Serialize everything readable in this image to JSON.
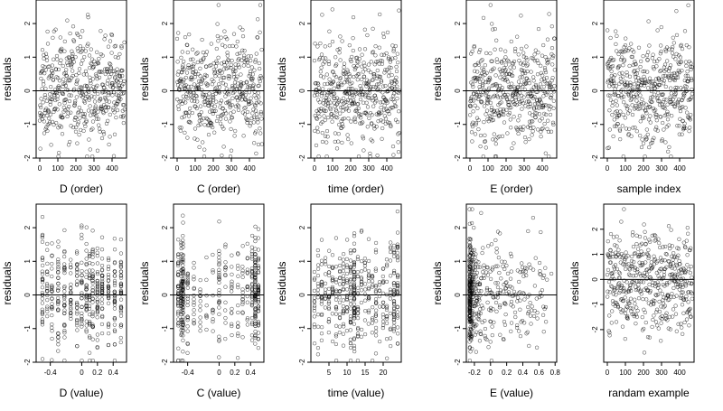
{
  "colors": {
    "point": "#000000",
    "background": "#ffffff"
  },
  "chart_data": [
    {
      "type": "scatter",
      "xlabel": "D (order)",
      "ylabel": "residuals",
      "xlim": [
        -20,
        480
      ],
      "ylim": [
        -2,
        2.7
      ],
      "xticks": [
        0,
        100,
        200,
        300,
        400
      ],
      "yticks": [
        -2,
        -1,
        0,
        1,
        2
      ],
      "reference_line": 0,
      "series": [
        {
          "generator": "index",
          "n": 470,
          "seed": 11
        }
      ]
    },
    {
      "type": "scatter",
      "xlabel": "C (order)",
      "ylabel": "residuals",
      "xlim": [
        -20,
        480
      ],
      "ylim": [
        -2,
        2.7
      ],
      "xticks": [
        0,
        100,
        200,
        300,
        400
      ],
      "yticks": [
        -2,
        -1,
        0,
        1,
        2
      ],
      "reference_line": 0,
      "series": [
        {
          "generator": "index",
          "n": 470,
          "seed": 23
        }
      ]
    },
    {
      "type": "scatter",
      "xlabel": "time (order)",
      "ylabel": "residuals",
      "xlim": [
        -20,
        480
      ],
      "ylim": [
        -2,
        2.7
      ],
      "xticks": [
        0,
        100,
        200,
        300,
        400
      ],
      "yticks": [
        -2,
        -1,
        0,
        1,
        2
      ],
      "reference_line": 0,
      "series": [
        {
          "generator": "index",
          "n": 470,
          "seed": 37
        }
      ]
    },
    {
      "type": "scatter",
      "xlabel": "E (order)",
      "ylabel": "residuals",
      "xlim": [
        -20,
        480
      ],
      "ylim": [
        -2,
        2.7
      ],
      "xticks": [
        0,
        100,
        200,
        300,
        400
      ],
      "yticks": [
        -2,
        -1,
        0,
        1,
        2
      ],
      "reference_line": 0,
      "series": [
        {
          "generator": "index",
          "n": 470,
          "seed": 41
        }
      ]
    },
    {
      "type": "scatter",
      "xlabel": "sample index",
      "ylabel": "residuals",
      "xlim": [
        -20,
        480
      ],
      "ylim": [
        -2,
        2.7
      ],
      "xticks": [
        0,
        100,
        200,
        300,
        400
      ],
      "yticks": [
        -2,
        -1,
        0,
        1,
        2
      ],
      "reference_line": 0,
      "series": [
        {
          "generator": "index",
          "n": 470,
          "seed": 53
        }
      ]
    },
    {
      "type": "scatter",
      "xlabel": "D (value)",
      "ylabel": "residuals",
      "xlim": [
        -0.58,
        0.57
      ],
      "ylim": [
        -2,
        2.7
      ],
      "xticks": [
        -0.4,
        0.0,
        0.2,
        0.4
      ],
      "yticks": [
        -2,
        -1,
        0,
        1,
        2
      ],
      "reference_line": 0,
      "series": [
        {
          "generator": "discrete",
          "n": 470,
          "seed": 61,
          "levels": [
            -0.5,
            -0.44,
            -0.38,
            -0.3,
            -0.22,
            -0.14,
            -0.06,
            0.0,
            0.06,
            0.1,
            0.14,
            0.2,
            0.26,
            0.34,
            0.42,
            0.5
          ]
        }
      ]
    },
    {
      "type": "scatter",
      "xlabel": "C (value)",
      "ylabel": "residuals",
      "xlim": [
        -0.58,
        0.57
      ],
      "ylim": [
        -2,
        2.7
      ],
      "xticks": [
        -0.4,
        0.0,
        0.2,
        0.4
      ],
      "yticks": [
        -2,
        -1,
        0,
        1,
        2
      ],
      "reference_line": 0,
      "series": [
        {
          "generator": "discrete",
          "n": 470,
          "seed": 73,
          "levels": [
            -0.52,
            -0.48,
            -0.46,
            -0.4,
            -0.32,
            -0.24,
            -0.16,
            -0.08,
            0.0,
            0.08,
            0.16,
            0.24,
            0.3,
            0.36,
            0.42,
            0.46,
            0.5
          ],
          "weights": [
            4,
            3,
            5,
            2,
            1,
            1,
            1,
            1,
            2,
            1,
            1,
            1,
            1,
            1,
            2,
            5,
            4
          ]
        }
      ]
    },
    {
      "type": "scatter",
      "xlabel": "time (value)",
      "ylabel": "residuals",
      "xlim": [
        0,
        25
      ],
      "ylim": [
        -2,
        2.7
      ],
      "xticks": [
        5,
        10,
        15,
        20
      ],
      "yticks": [
        -2,
        -1,
        0,
        1,
        2
      ],
      "reference_line": 0,
      "series": [
        {
          "generator": "discrete",
          "n": 470,
          "seed": 89,
          "levels": [
            1,
            2,
            3,
            4,
            5,
            6,
            7,
            8,
            9,
            10,
            11,
            12,
            13,
            14,
            15,
            16,
            17,
            18,
            19,
            20,
            21,
            22,
            23,
            24
          ],
          "weights": [
            1,
            1,
            1,
            1,
            1,
            1,
            1,
            1,
            1,
            1,
            2,
            4,
            1,
            1,
            1,
            1,
            1,
            1,
            1,
            1,
            1,
            1,
            2,
            2
          ]
        }
      ]
    },
    {
      "type": "scatter",
      "xlabel": "E (value)",
      "ylabel": "residuals",
      "xlim": [
        -0.3,
        0.82
      ],
      "ylim": [
        -2,
        2.7
      ],
      "xticks": [
        -0.2,
        0.0,
        0.2,
        0.4,
        0.6,
        0.8
      ],
      "yticks": [
        -2,
        -1,
        0,
        1,
        2
      ],
      "reference_line": 0,
      "series": [
        {
          "generator": "skewed",
          "n": 470,
          "seed": 97,
          "min": -0.26,
          "max": 0.76,
          "concentration": 3.2
        }
      ]
    },
    {
      "type": "scatter",
      "xlabel": "randam example",
      "ylabel": "residuals",
      "xlim": [
        -20,
        480
      ],
      "ylim": [
        -3.3,
        3.0
      ],
      "xticks": [
        0,
        100,
        200,
        300,
        400
      ],
      "yticks": [
        -2,
        -1,
        0,
        1,
        2
      ],
      "reference_line": 0,
      "series": [
        {
          "generator": "index",
          "n": 470,
          "seed": 101,
          "sd": 1.0,
          "clip": [
            -3.1,
            2.8
          ]
        }
      ]
    }
  ]
}
